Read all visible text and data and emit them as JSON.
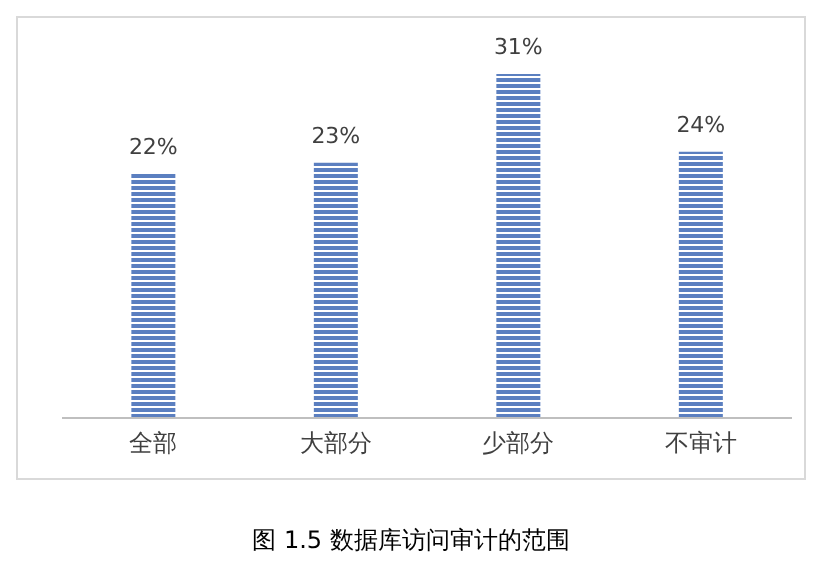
{
  "chart_data": {
    "type": "bar",
    "title": "图 1.5 数据库访问审计的范围",
    "categories": [
      "全部",
      "大部分",
      "少部分",
      "不审计"
    ],
    "values": [
      22,
      23,
      31,
      24
    ],
    "value_labels": [
      "22%",
      "23%",
      "31%",
      "24%"
    ],
    "color": "#5b7fc0"
  }
}
